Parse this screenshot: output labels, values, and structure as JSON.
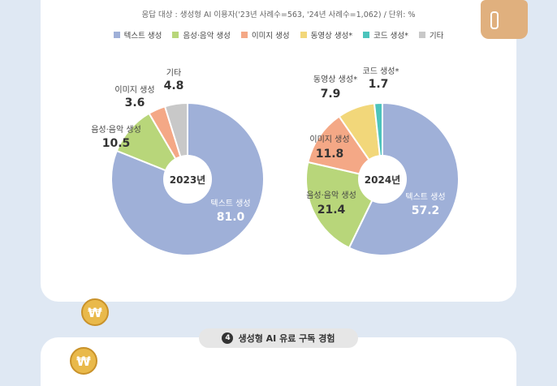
{
  "note": "응답 대상 : 생성형 AI 이용자('23년 사례수=563, '24년 사례수=1,062) / 단위: %",
  "legend": [
    {
      "label": "텍스트 생성",
      "color": "#9fb0d8"
    },
    {
      "label": "음성·음악 생성",
      "color": "#b8d67a"
    },
    {
      "label": "이미지 생성",
      "color": "#f4a886"
    },
    {
      "label": "동영상 생성*",
      "color": "#f2d77a"
    },
    {
      "label": "코드 생성*",
      "color": "#4cc4bc"
    },
    {
      "label": "기타",
      "color": "#c8c8c8"
    }
  ],
  "chart_data": [
    {
      "type": "pie",
      "center_label": "2023년",
      "slices": [
        {
          "label": "텍스트 생성",
          "value": 81.0,
          "color": "#9fb0d8"
        },
        {
          "label": "음성·음악 생성",
          "value": 10.5,
          "color": "#b8d67a"
        },
        {
          "label": "이미지 생성",
          "value": 3.6,
          "color": "#f4a886"
        },
        {
          "label": "기타",
          "value": 4.8,
          "color": "#c8c8c8"
        }
      ],
      "value_labels": [
        "81.0",
        "10.5",
        "3.6",
        "4.8"
      ]
    },
    {
      "type": "pie",
      "center_label": "2024년",
      "slices": [
        {
          "label": "텍스트 생성",
          "value": 57.2,
          "color": "#9fb0d8"
        },
        {
          "label": "음성·음악 생성",
          "value": 21.4,
          "color": "#b8d67a"
        },
        {
          "label": "이미지 생성",
          "value": 11.8,
          "color": "#f4a886"
        },
        {
          "label": "동영상 생성*",
          "value": 7.9,
          "color": "#f2d77a"
        },
        {
          "label": "코드 생성*",
          "value": 1.7,
          "color": "#4cc4bc"
        }
      ],
      "value_labels": [
        "57.2",
        "21.4",
        "11.8",
        "7.9",
        "1.7"
      ]
    }
  ],
  "section": {
    "number": "4",
    "title": "생성형 AI 유료 구독 경험"
  },
  "coin_symbol": "₩"
}
